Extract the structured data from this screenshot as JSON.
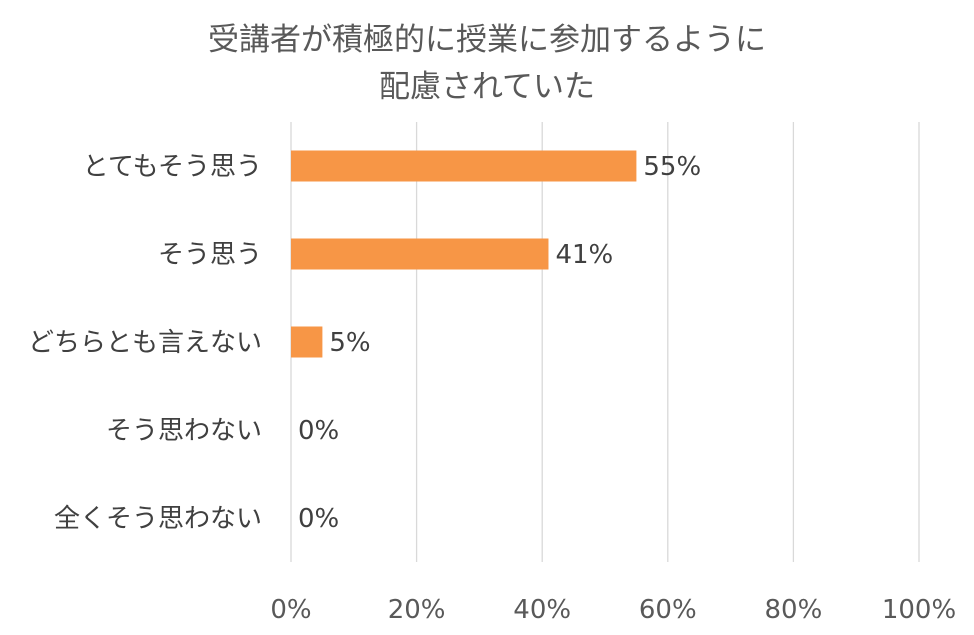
{
  "chart_data": {
    "type": "bar",
    "orientation": "horizontal",
    "title_lines": [
      "受講者が積極的に授業に参加するように",
      "配慮されていた"
    ],
    "categories": [
      "とてもそう思う",
      "そう思う",
      "どちらとも言えない",
      "そう思わない",
      "全くそう思わない"
    ],
    "values": [
      55,
      41,
      5,
      0,
      0
    ],
    "data_labels": [
      "55%",
      "41%",
      "5%",
      "0%",
      "0%"
    ],
    "x_ticks": [
      "0%",
      "20%",
      "40%",
      "60%",
      "80%",
      "100%"
    ],
    "xlim": [
      0,
      100
    ],
    "grid": true,
    "legend": "none",
    "bar_color": "#f79646"
  }
}
